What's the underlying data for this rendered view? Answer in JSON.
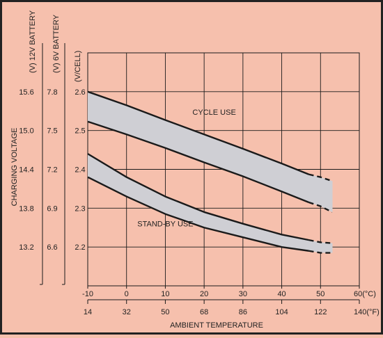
{
  "colors": {
    "background": "#f6c0ad",
    "band_fill": "#cfcfd4",
    "line": "#1a1a1a",
    "frame": "#222222"
  },
  "chart_data": {
    "type": "area",
    "title": "",
    "xlabel": "AMBIENT TEMPERATURE",
    "ylabel": "CHARGING VOLTAGE",
    "xlim": [
      -10,
      60
    ],
    "ylim": [
      2.1,
      2.7
    ],
    "grid": true,
    "x_ticks_c": [
      -10,
      0,
      10,
      20,
      30,
      40,
      50,
      60
    ],
    "x_tick_labels_c": [
      "-10",
      "0",
      "10",
      "20",
      "30",
      "40",
      "50",
      "60(°C)"
    ],
    "x_tick_labels_f": [
      "14",
      "32",
      "50",
      "68",
      "86",
      "104",
      "122",
      "140(°F)"
    ],
    "y_axes": [
      {
        "title": "(V/CELL)",
        "ticks": [
          2.2,
          2.3,
          2.4,
          2.5,
          2.6
        ],
        "labels": [
          "2.2",
          "2.3",
          "2.4",
          "2.5",
          "2.6"
        ]
      },
      {
        "title": "(V) 6V BATTERY",
        "ticks": [
          2.2,
          2.3,
          2.4,
          2.5,
          2.6
        ],
        "labels": [
          "6.6",
          "6.9",
          "7.2",
          "7.5",
          "7.8"
        ]
      },
      {
        "title": "(V) 12V BATTERY",
        "ticks": [
          2.2,
          2.3,
          2.4,
          2.5,
          2.6
        ],
        "labels": [
          "13.2",
          "13.8",
          "14.4",
          "15.0",
          "15.6"
        ]
      }
    ],
    "series": [
      {
        "name": "CYCLE USE",
        "x": [
          -10,
          0,
          10,
          20,
          30,
          40,
          47,
          50,
          53
        ],
        "upper": [
          2.6,
          2.565,
          2.527,
          2.49,
          2.453,
          2.415,
          2.387,
          2.38,
          2.37
        ],
        "lower": [
          2.523,
          2.49,
          2.455,
          2.418,
          2.382,
          2.343,
          2.315,
          2.305,
          2.29
        ],
        "dashed_from_x": 48
      },
      {
        "name": "STAND-BY USE",
        "x": [
          -10,
          0,
          10,
          20,
          30,
          40,
          47,
          50,
          53
        ],
        "upper": [
          2.44,
          2.38,
          2.33,
          2.29,
          2.26,
          2.232,
          2.218,
          2.212,
          2.21
        ],
        "lower": [
          2.38,
          2.33,
          2.285,
          2.25,
          2.225,
          2.2,
          2.19,
          2.185,
          2.185
        ],
        "dashed_from_x": 48
      }
    ],
    "annotations": [
      "CYCLE USE",
      "STAND-BY USE"
    ]
  }
}
